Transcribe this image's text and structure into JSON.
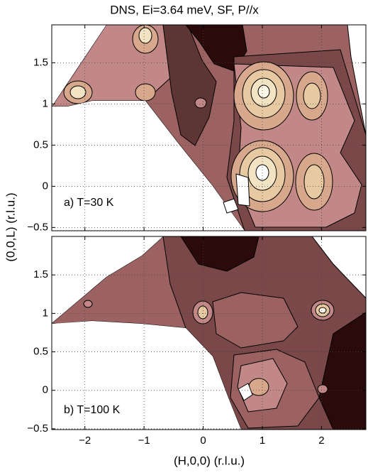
{
  "chart_data": [
    {
      "type": "contour",
      "title": "DNS, Ei=3.64 meV, SF, P//x",
      "annotation": "a) T=30 K",
      "ylabel": "(0,0,L) (r.l.u.)",
      "xlim": [
        -2.56,
        2.75
      ],
      "ylim": [
        -0.54,
        1.96
      ],
      "xticks": [
        -2,
        -1,
        0,
        1,
        2
      ],
      "show_xticklabels": false,
      "yticks": [
        {
          "value": -0.5,
          "label": "−0.5"
        },
        0,
        0.5,
        1,
        1.5
      ],
      "grid": true
    },
    {
      "type": "contour",
      "annotation": "b) T=100 K",
      "xlabel": "(H,0,0) (r.l.u.)",
      "xlim": [
        -2.56,
        2.75
      ],
      "ylim": [
        -0.51,
        2.0
      ],
      "xticks": [
        {
          "value": -2,
          "label": "−2"
        },
        {
          "value": -1,
          "label": "−1"
        },
        0,
        1,
        2
      ],
      "show_xticklabels": true,
      "yticks": [
        {
          "value": -0.5,
          "label": "−0.5"
        },
        0,
        0.5,
        1,
        1.5
      ],
      "grid": true
    }
  ]
}
